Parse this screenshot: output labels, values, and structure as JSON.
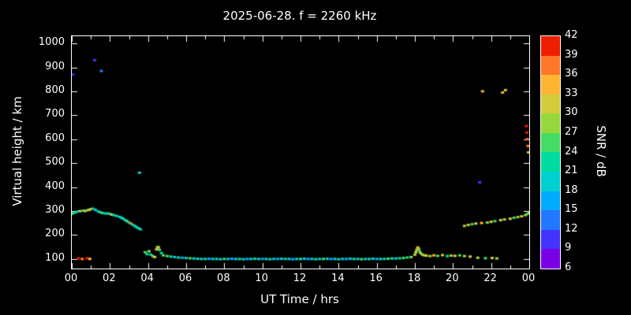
{
  "chart_data": {
    "type": "scatter",
    "title": "2025-06-28. f = 2260 kHz",
    "xlabel": "UT Time / hrs",
    "ylabel": "Virtual height / km",
    "xlim": [
      0,
      24
    ],
    "ylim": [
      60,
      1030
    ],
    "grid": false,
    "background": "#000000",
    "axis_color": "#ffffff",
    "xtick_hours": [
      0,
      2,
      4,
      6,
      8,
      10,
      12,
      14,
      16,
      18,
      20,
      22,
      24
    ],
    "xtick_labels": [
      "00",
      "02",
      "04",
      "06",
      "08",
      "10",
      "12",
      "14",
      "16",
      "18",
      "20",
      "22",
      "00"
    ],
    "ytick_values": [
      100,
      200,
      300,
      400,
      500,
      600,
      700,
      800,
      900,
      1000
    ],
    "colorbar": {
      "label": "SNR / dB",
      "min": 6,
      "max": 42,
      "ticks": [
        6,
        9,
        12,
        15,
        18,
        21,
        24,
        27,
        30,
        33,
        36,
        39,
        42
      ],
      "colors": [
        "#7a00e6",
        "#4433ff",
        "#2277ff",
        "#00aaff",
        "#00d0d0",
        "#00dca0",
        "#44dc64",
        "#96d73c",
        "#d2cc3c",
        "#ffb432",
        "#ff7828",
        "#ee1e00"
      ]
    },
    "points": [
      [
        0.05,
        870,
        9
      ],
      [
        1.2,
        930,
        10
      ],
      [
        1.55,
        885,
        12
      ],
      [
        0.0,
        288,
        21
      ],
      [
        0.1,
        292,
        24
      ],
      [
        0.2,
        295,
        21
      ],
      [
        0.3,
        298,
        18
      ],
      [
        0.45,
        300,
        30
      ],
      [
        0.6,
        302,
        21
      ],
      [
        0.7,
        300,
        33
      ],
      [
        0.8,
        303,
        24
      ],
      [
        0.9,
        305,
        33
      ],
      [
        1.0,
        308,
        30
      ],
      [
        1.1,
        310,
        21
      ],
      [
        1.25,
        305,
        18
      ],
      [
        1.4,
        298,
        21
      ],
      [
        1.5,
        295,
        18
      ],
      [
        1.6,
        292,
        24
      ],
      [
        1.75,
        290,
        21
      ],
      [
        1.9,
        290,
        18
      ],
      [
        2.0,
        288,
        21
      ],
      [
        2.1,
        285,
        33
      ],
      [
        2.2,
        283,
        21
      ],
      [
        2.35,
        280,
        18
      ],
      [
        2.5,
        276,
        21
      ],
      [
        2.6,
        272,
        18
      ],
      [
        2.7,
        268,
        21
      ],
      [
        2.8,
        262,
        18
      ],
      [
        2.9,
        258,
        24
      ],
      [
        3.0,
        252,
        21
      ],
      [
        3.1,
        248,
        36
      ],
      [
        3.2,
        243,
        21
      ],
      [
        3.3,
        238,
        18
      ],
      [
        3.4,
        233,
        21
      ],
      [
        3.5,
        228,
        18
      ],
      [
        3.6,
        224,
        21
      ],
      [
        0.35,
        102,
        39
      ],
      [
        0.55,
        100,
        36
      ],
      [
        0.8,
        103,
        39
      ],
      [
        0.95,
        100,
        33
      ],
      [
        3.55,
        460,
        18
      ],
      [
        3.85,
        128,
        24
      ],
      [
        3.95,
        120,
        21
      ],
      [
        4.05,
        132,
        27
      ],
      [
        4.15,
        118,
        21
      ],
      [
        4.25,
        112,
        24
      ],
      [
        4.35,
        108,
        30
      ],
      [
        4.45,
        140,
        33
      ],
      [
        4.5,
        150,
        30
      ],
      [
        4.55,
        148,
        27
      ],
      [
        4.6,
        138,
        24
      ],
      [
        4.7,
        125,
        21
      ],
      [
        4.8,
        115,
        24
      ],
      [
        5.0,
        112,
        24
      ],
      [
        5.2,
        110,
        21
      ],
      [
        5.4,
        108,
        18
      ],
      [
        5.6,
        106,
        21
      ],
      [
        5.8,
        105,
        15
      ],
      [
        6.0,
        104,
        21
      ],
      [
        6.2,
        103,
        24
      ],
      [
        6.4,
        102,
        18
      ],
      [
        6.6,
        101,
        21
      ],
      [
        6.8,
        100,
        18
      ],
      [
        7.0,
        100,
        21
      ],
      [
        7.2,
        101,
        15
      ],
      [
        7.4,
        100,
        18
      ],
      [
        7.6,
        100,
        21
      ],
      [
        7.8,
        99,
        18
      ],
      [
        8.0,
        100,
        24
      ],
      [
        8.2,
        100,
        18
      ],
      [
        8.4,
        101,
        15
      ],
      [
        8.6,
        100,
        18
      ],
      [
        8.8,
        100,
        21
      ],
      [
        9.0,
        99,
        18
      ],
      [
        9.2,
        100,
        15
      ],
      [
        9.4,
        100,
        18
      ],
      [
        9.6,
        101,
        21
      ],
      [
        9.8,
        100,
        18
      ],
      [
        10.0,
        100,
        15
      ],
      [
        10.2,
        100,
        18
      ],
      [
        10.4,
        99,
        21
      ],
      [
        10.6,
        100,
        18
      ],
      [
        10.8,
        100,
        15
      ],
      [
        11.0,
        101,
        18
      ],
      [
        11.2,
        100,
        21
      ],
      [
        11.4,
        100,
        18
      ],
      [
        11.6,
        99,
        15
      ],
      [
        11.8,
        100,
        18
      ],
      [
        12.0,
        100,
        21
      ],
      [
        12.2,
        101,
        18
      ],
      [
        12.4,
        100,
        15
      ],
      [
        12.6,
        100,
        18
      ],
      [
        12.8,
        99,
        21
      ],
      [
        13.0,
        100,
        18
      ],
      [
        13.2,
        100,
        24
      ],
      [
        13.4,
        101,
        18
      ],
      [
        13.6,
        100,
        15
      ],
      [
        13.8,
        100,
        18
      ],
      [
        14.0,
        99,
        21
      ],
      [
        14.2,
        100,
        18
      ],
      [
        14.4,
        100,
        15
      ],
      [
        14.6,
        101,
        18
      ],
      [
        14.8,
        100,
        21
      ],
      [
        15.0,
        100,
        18
      ],
      [
        15.2,
        99,
        24
      ],
      [
        15.4,
        100,
        18
      ],
      [
        15.6,
        100,
        21
      ],
      [
        15.8,
        101,
        18
      ],
      [
        16.0,
        100,
        15
      ],
      [
        16.2,
        100,
        21
      ],
      [
        16.4,
        100,
        18
      ],
      [
        16.6,
        101,
        24
      ],
      [
        16.8,
        102,
        21
      ],
      [
        17.0,
        102,
        18
      ],
      [
        17.2,
        103,
        21
      ],
      [
        17.4,
        104,
        24
      ],
      [
        17.6,
        106,
        21
      ],
      [
        17.8,
        108,
        27
      ],
      [
        18.0,
        118,
        27
      ],
      [
        18.05,
        128,
        30
      ],
      [
        18.1,
        138,
        30
      ],
      [
        18.15,
        148,
        33
      ],
      [
        18.2,
        142,
        27
      ],
      [
        18.25,
        132,
        24
      ],
      [
        18.3,
        124,
        27
      ],
      [
        18.4,
        118,
        30
      ],
      [
        18.5,
        115,
        27
      ],
      [
        18.6,
        114,
        30
      ],
      [
        18.8,
        112,
        27
      ],
      [
        19.0,
        115,
        33
      ],
      [
        19.2,
        113,
        24
      ],
      [
        19.45,
        116,
        30
      ],
      [
        19.7,
        112,
        21
      ],
      [
        19.9,
        114,
        27
      ],
      [
        20.1,
        113,
        30
      ],
      [
        20.35,
        115,
        24
      ],
      [
        20.6,
        112,
        27
      ],
      [
        20.9,
        110,
        30
      ],
      [
        21.3,
        105,
        27
      ],
      [
        21.7,
        103,
        24
      ],
      [
        22.05,
        104,
        30
      ],
      [
        22.3,
        102,
        27
      ],
      [
        20.6,
        238,
        27
      ],
      [
        20.8,
        242,
        30
      ],
      [
        21.0,
        245,
        24
      ],
      [
        21.2,
        248,
        30
      ],
      [
        21.5,
        250,
        33
      ],
      [
        21.8,
        252,
        27
      ],
      [
        22.0,
        255,
        30
      ],
      [
        22.2,
        258,
        24
      ],
      [
        22.5,
        262,
        30
      ],
      [
        22.7,
        265,
        27
      ],
      [
        23.0,
        268,
        30
      ],
      [
        23.2,
        272,
        24
      ],
      [
        23.4,
        275,
        27
      ],
      [
        23.6,
        278,
        30
      ],
      [
        23.8,
        283,
        27
      ],
      [
        23.9,
        288,
        24
      ],
      [
        24.0,
        292,
        27
      ],
      [
        21.4,
        420,
        9
      ],
      [
        21.55,
        800,
        33
      ],
      [
        22.6,
        795,
        33
      ],
      [
        22.75,
        805,
        30
      ],
      [
        23.85,
        655,
        39
      ],
      [
        23.88,
        628,
        39
      ],
      [
        23.9,
        600,
        36
      ],
      [
        23.93,
        572,
        36
      ],
      [
        23.96,
        545,
        33
      ]
    ]
  }
}
